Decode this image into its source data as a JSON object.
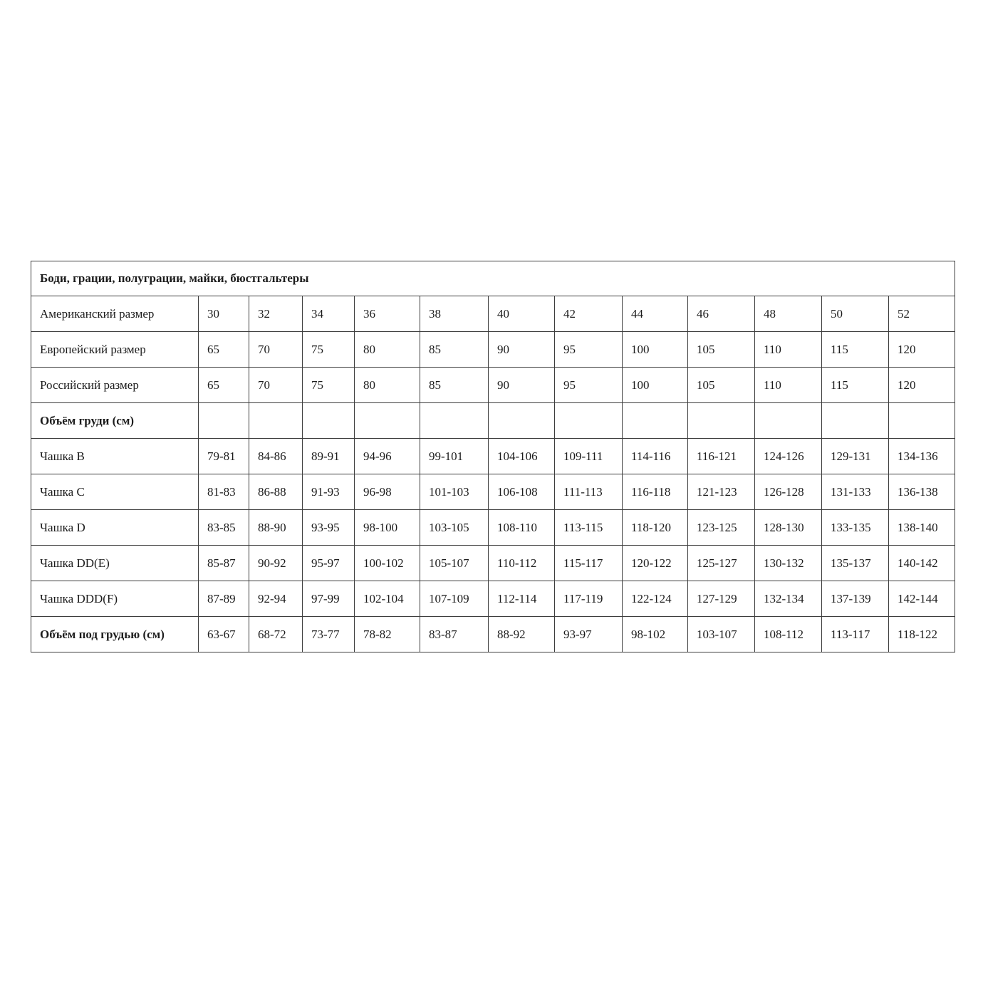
{
  "table": {
    "title": "Боди, грации, полуграции, майки, бюстгальтеры",
    "rows": [
      {
        "label": "Американский размер",
        "bold": false,
        "values": [
          "30",
          "32",
          "34",
          "36",
          "38",
          "40",
          "42",
          "44",
          "46",
          "48",
          "50",
          "52"
        ]
      },
      {
        "label": "Европейский размер",
        "bold": false,
        "values": [
          "65",
          "70",
          "75",
          "80",
          "85",
          "90",
          "95",
          "100",
          "105",
          "110",
          "115",
          "120"
        ]
      },
      {
        "label": "Российский размер",
        "bold": false,
        "values": [
          "65",
          "70",
          "75",
          "80",
          "85",
          "90",
          "95",
          "100",
          "105",
          "110",
          "115",
          "120"
        ]
      },
      {
        "label": "Объём груди (см)",
        "bold": true,
        "values": [
          "",
          "",
          "",
          "",
          "",
          "",
          "",
          "",
          "",
          "",
          "",
          ""
        ]
      },
      {
        "label": "Чашка B",
        "bold": false,
        "values": [
          "79-81",
          "84-86",
          "89-91",
          "94-96",
          "99-101",
          "104-106",
          "109-111",
          "114-116",
          "116-121",
          "124-126",
          "129-131",
          "134-136"
        ]
      },
      {
        "label": "Чашка C",
        "bold": false,
        "values": [
          "81-83",
          "86-88",
          "91-93",
          "96-98",
          "101-103",
          "106-108",
          "111-113",
          "116-118",
          "121-123",
          "126-128",
          "131-133",
          "136-138"
        ]
      },
      {
        "label": "Чашка D",
        "bold": false,
        "values": [
          "83-85",
          "88-90",
          "93-95",
          "98-100",
          "103-105",
          "108-110",
          "113-115",
          "118-120",
          "123-125",
          "128-130",
          "133-135",
          "138-140"
        ]
      },
      {
        "label": "Чашка DD(E)",
        "bold": false,
        "values": [
          "85-87",
          "90-92",
          "95-97",
          "100-102",
          "105-107",
          "110-112",
          "115-117",
          "120-122",
          "125-127",
          "130-132",
          "135-137",
          "140-142"
        ]
      },
      {
        "label": "Чашка DDD(F)",
        "bold": false,
        "values": [
          "87-89",
          "92-94",
          "97-99",
          "102-104",
          "107-109",
          "112-114",
          "117-119",
          "122-124",
          "127-129",
          "132-134",
          "137-139",
          "142-144"
        ]
      },
      {
        "label": "Объём под грудью (см)",
        "bold": true,
        "values": [
          "63-67",
          "68-72",
          "73-77",
          "78-82",
          "83-87",
          "88-92",
          "93-97",
          "98-102",
          "103-107",
          "108-112",
          "113-117",
          "118-122"
        ]
      }
    ]
  }
}
